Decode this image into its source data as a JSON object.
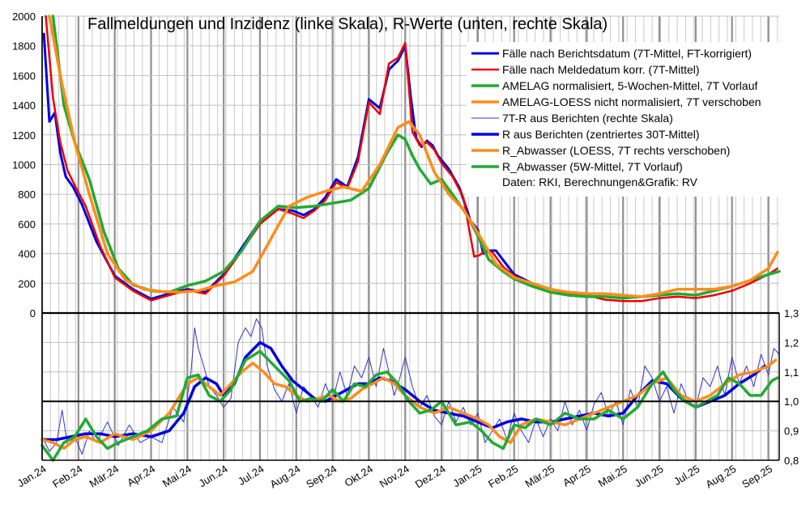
{
  "chart_data": {
    "type": "line",
    "title": "Fallmeldungen und Inzidenz (linke Skala), R-Werte (unten, rechte Skala)",
    "credit": "Daten: RKI, Berechnungen&Grafik: RV",
    "left_axis": {
      "ylim": [
        0,
        2000
      ],
      "ticks": [
        "0",
        "200",
        "400",
        "600",
        "800",
        "1000",
        "1200",
        "1400",
        "1600",
        "1800",
        "2000"
      ]
    },
    "right_axis": {
      "ylim": [
        0.8,
        1.3
      ],
      "ticks": [
        "0,8",
        "0,9",
        "1,0",
        "1,1",
        "1,2",
        "1,3"
      ]
    },
    "x_range": [
      0,
      20.3
    ],
    "months": [
      "Jan.24",
      "Feb.24",
      "Mär.24",
      "Apr.24",
      "Mai.24",
      "Jun.24",
      "Jul.24",
      "Aug.24",
      "Sep.24",
      "Okt.24",
      "Nov.24",
      "Dez.24",
      "Jan.25",
      "Feb.25",
      "Mär.25",
      "Apr.25",
      "Mai.25",
      "Jun.25",
      "Jul.25",
      "Aug.25",
      "Sep.25"
    ],
    "legend_position": "top-right",
    "reference_line_R": 1.0,
    "series": [
      {
        "name": "Fälle nach Berichtsdatum (7T-Mittel, FT-korrigiert)",
        "panel": "upper",
        "color": "#0000dd",
        "width": 3,
        "x": [
          0.05,
          0.2,
          0.35,
          0.5,
          0.65,
          0.85,
          1.1,
          1.5,
          2.0,
          2.5,
          3.0,
          3.5,
          4.0,
          4.5,
          5.0,
          5.5,
          6.0,
          6.5,
          6.9,
          7.2,
          7.5,
          7.8,
          8.1,
          8.4,
          8.7,
          9.0,
          9.3,
          9.55,
          9.8,
          10.0,
          10.15,
          10.3,
          10.45,
          10.6,
          10.75,
          10.9,
          11.2,
          11.5,
          11.8,
          12.0,
          12.15,
          12.3,
          12.5,
          13.0,
          13.5,
          14.0,
          14.5,
          15.0
        ],
        "values": [
          1880,
          1290,
          1350,
          1080,
          920,
          850,
          730,
          480,
          250,
          160,
          95,
          130,
          160,
          140,
          260,
          440,
          620,
          700,
          690,
          660,
          700,
          780,
          900,
          850,
          1050,
          1440,
          1380,
          1640,
          1700,
          1800,
          1460,
          1180,
          1120,
          1160,
          1130,
          1060,
          970,
          840,
          620,
          560,
          400,
          420,
          420,
          260,
          200,
          160,
          140,
          130
        ]
      },
      {
        "name": "Fälle nach Meldedatum korr. (7T-Mittel)",
        "panel": "upper",
        "color": "#ee0000",
        "width": 2.5,
        "x": [
          0.1,
          0.3,
          0.5,
          0.7,
          0.9,
          1.2,
          1.6,
          2.0,
          2.5,
          3.0,
          3.5,
          4.0,
          4.5,
          5.0,
          5.5,
          6.0,
          6.5,
          6.9,
          7.2,
          7.5,
          7.8,
          8.1,
          8.4,
          8.7,
          9.0,
          9.3,
          9.55,
          9.8,
          10.0,
          10.2,
          10.4,
          10.6,
          10.8,
          11.0,
          11.3,
          11.6,
          11.9,
          12.05,
          12.2,
          12.4,
          12.7,
          13.0,
          13.5,
          14.0,
          14.5,
          15.0,
          15.5,
          16.0,
          16.5,
          17.0,
          17.5,
          18.0,
          18.5,
          19.0,
          19.5,
          20.0,
          20.25
        ],
        "values": [
          2000,
          1450,
          1150,
          960,
          860,
          720,
          450,
          240,
          150,
          85,
          120,
          155,
          130,
          250,
          420,
          600,
          700,
          670,
          640,
          690,
          760,
          880,
          840,
          1020,
          1420,
          1340,
          1680,
          1720,
          1820,
          1220,
          1130,
          1150,
          1100,
          1010,
          920,
          780,
          380,
          390,
          420,
          410,
          310,
          250,
          190,
          160,
          130,
          120,
          90,
          80,
          80,
          100,
          110,
          100,
          120,
          150,
          200,
          260,
          300
        ]
      },
      {
        "name": "AMELAG normalisiert, 5-Wochen-Mittel, 7T Vorlauf",
        "panel": "upper",
        "color": "#22aa33",
        "width": 3.5,
        "x": [
          0.3,
          0.6,
          0.9,
          1.3,
          1.7,
          2.1,
          2.5,
          3.0,
          3.5,
          4.0,
          4.5,
          5.0,
          5.5,
          6.0,
          6.5,
          7.0,
          7.5,
          8.0,
          8.5,
          9.0,
          9.5,
          9.8,
          10.0,
          10.2,
          10.4,
          10.7,
          11.0,
          11.3,
          11.7,
          12.0,
          12.3,
          12.7,
          13.0,
          13.5,
          14.0,
          14.5,
          15.0,
          15.5,
          16.0,
          16.5,
          17.0,
          17.5,
          18.0,
          18.5,
          19.0,
          19.5,
          20.0,
          20.3
        ],
        "values": [
          2000,
          1400,
          1150,
          900,
          550,
          300,
          190,
          150,
          140,
          185,
          215,
          280,
          420,
          620,
          720,
          710,
          720,
          740,
          760,
          840,
          1080,
          1200,
          1170,
          1060,
          970,
          870,
          900,
          800,
          660,
          520,
          360,
          280,
          230,
          180,
          140,
          120,
          110,
          110,
          100,
          110,
          120,
          130,
          120,
          150,
          180,
          220,
          260,
          280
        ]
      },
      {
        "name": "AMELAG-LOESS nicht normalisiert, 7T verschoben",
        "panel": "upper",
        "color": "#ff8c1a",
        "width": 3.5,
        "x": [
          0.2,
          0.5,
          0.9,
          1.3,
          1.8,
          2.3,
          2.8,
          3.3,
          3.8,
          4.3,
          4.8,
          5.3,
          5.8,
          6.3,
          6.8,
          7.3,
          7.8,
          8.3,
          8.8,
          9.3,
          9.8,
          10.1,
          10.4,
          10.8,
          11.2,
          11.6,
          12.0,
          12.5,
          13.0,
          13.5,
          14.0,
          14.5,
          15.0,
          15.5,
          16.0,
          16.5,
          17.0,
          17.5,
          18.0,
          18.5,
          19.0,
          19.5,
          20.0,
          20.25
        ],
        "values": [
          2000,
          1600,
          1150,
          800,
          400,
          220,
          160,
          145,
          140,
          150,
          185,
          210,
          280,
          500,
          720,
          780,
          820,
          850,
          820,
          1000,
          1250,
          1290,
          1200,
          950,
          800,
          700,
          540,
          330,
          240,
          200,
          160,
          140,
          130,
          130,
          120,
          110,
          130,
          160,
          160,
          160,
          180,
          220,
          300,
          410
        ]
      },
      {
        "name": "7T-R aus Berichten (rechte Skala)",
        "panel": "lower",
        "color": "#3333cc",
        "width": 1,
        "x": [
          0.0,
          0.2,
          0.4,
          0.55,
          0.7,
          0.9,
          1.1,
          1.3,
          1.5,
          1.8,
          2.1,
          2.4,
          2.7,
          3.0,
          3.3,
          3.6,
          3.9,
          4.1,
          4.2,
          4.3,
          4.45,
          4.6,
          4.8,
          5.0,
          5.2,
          5.4,
          5.6,
          5.75,
          5.9,
          6.05,
          6.2,
          6.4,
          6.6,
          6.8,
          7.0,
          7.2,
          7.4,
          7.6,
          7.8,
          8.0,
          8.2,
          8.4,
          8.6,
          8.8,
          9.0,
          9.2,
          9.4,
          9.55,
          9.7,
          9.85,
          10.0,
          10.2,
          10.4,
          10.6,
          10.8,
          11.0,
          11.2,
          11.4,
          11.6,
          11.8,
          12.0,
          12.2,
          12.4,
          12.6,
          12.8,
          13.0,
          13.2,
          13.4,
          13.6,
          13.8,
          14.0,
          14.2,
          14.4,
          14.6,
          14.8,
          15.0,
          15.2,
          15.4,
          15.6,
          15.8,
          16.0,
          16.2,
          16.4,
          16.6,
          16.8,
          17.0,
          17.2,
          17.4,
          17.6,
          17.8,
          18.0,
          18.2,
          18.4,
          18.6,
          18.8,
          19.0,
          19.2,
          19.4,
          19.6,
          19.8,
          20.0,
          20.15,
          20.3
        ],
        "values": [
          0.88,
          0.83,
          0.86,
          0.97,
          0.85,
          0.88,
          0.82,
          0.9,
          0.86,
          0.93,
          0.85,
          0.92,
          0.86,
          0.88,
          0.86,
          0.98,
          0.93,
          1.1,
          1.25,
          1.18,
          1.12,
          1.05,
          1.02,
          0.98,
          1.01,
          1.2,
          1.25,
          1.22,
          1.28,
          1.25,
          1.12,
          1.04,
          1.0,
          1.06,
          0.96,
          1.05,
          1.02,
          0.98,
          1.06,
          1.0,
          1.1,
          1.02,
          1.12,
          1.08,
          1.15,
          1.05,
          1.18,
          1.1,
          1.02,
          1.08,
          1.15,
          1.05,
          0.98,
          1.02,
          0.95,
          0.92,
          1.0,
          0.93,
          0.98,
          0.92,
          0.96,
          0.86,
          0.9,
          0.94,
          0.87,
          0.96,
          0.9,
          0.86,
          0.94,
          0.88,
          0.94,
          0.9,
          1.0,
          0.92,
          0.97,
          0.9,
          0.99,
          1.03,
          0.95,
          1.0,
          0.92,
          1.04,
          0.98,
          1.12,
          1.08,
          1.0,
          1.05,
          0.96,
          1.06,
          1.0,
          0.98,
          1.08,
          1.05,
          1.12,
          1.02,
          1.15,
          1.06,
          1.12,
          1.05,
          1.16,
          1.09,
          1.18,
          1.16
        ]
      },
      {
        "name": "R aus Berichten (zentriertes 30T-Mittel)",
        "panel": "lower",
        "color": "#0000dd",
        "width": 3.5,
        "x": [
          0.0,
          0.4,
          0.8,
          1.2,
          1.6,
          2.0,
          2.5,
          3.0,
          3.5,
          3.9,
          4.2,
          4.5,
          4.8,
          5.0,
          5.3,
          5.6,
          6.0,
          6.3,
          6.6,
          6.9,
          7.2,
          7.5,
          7.8,
          8.1,
          8.4,
          8.7,
          9.0,
          9.3,
          9.6,
          10.0,
          10.4,
          10.8,
          11.2,
          11.6,
          12.0,
          12.4,
          12.8,
          13.2,
          13.6,
          14.0,
          14.4,
          14.8,
          15.2,
          15.6,
          16.0,
          16.4,
          16.8,
          17.2,
          17.6,
          18.0,
          18.4,
          18.8,
          19.2,
          19.6,
          19.9
        ],
        "values": [
          0.87,
          0.87,
          0.88,
          0.89,
          0.89,
          0.88,
          0.89,
          0.88,
          0.9,
          0.96,
          1.05,
          1.08,
          1.06,
          1.02,
          1.06,
          1.15,
          1.2,
          1.18,
          1.12,
          1.07,
          1.04,
          1.01,
          1.0,
          1.02,
          1.04,
          1.06,
          1.06,
          1.08,
          1.07,
          1.04,
          1.0,
          0.97,
          0.96,
          0.95,
          0.93,
          0.91,
          0.93,
          0.94,
          0.93,
          0.93,
          0.94,
          0.95,
          0.96,
          0.95,
          0.96,
          1.02,
          1.07,
          1.06,
          1.01,
          0.98,
          1.0,
          1.02,
          1.06,
          1.09,
          1.12
        ]
      },
      {
        "name": "R_Abwasser (LOESS, 7T rechts verschoben)",
        "panel": "lower",
        "color": "#ff8c1a",
        "width": 3.5,
        "x": [
          0.0,
          0.3,
          0.6,
          0.9,
          1.2,
          1.6,
          2.0,
          2.5,
          3.0,
          3.5,
          4.0,
          4.3,
          4.6,
          4.9,
          5.2,
          5.5,
          5.8,
          6.1,
          6.4,
          6.7,
          7.0,
          7.3,
          7.6,
          7.9,
          8.2,
          8.5,
          8.8,
          9.1,
          9.4,
          9.7,
          10.0,
          10.4,
          10.8,
          11.2,
          11.6,
          12.0,
          12.3,
          12.6,
          12.9,
          13.2,
          13.6,
          14.0,
          14.4,
          14.8,
          15.2,
          15.6,
          16.0,
          16.4,
          16.8,
          17.2,
          17.6,
          18.0,
          18.4,
          18.8,
          19.2,
          19.6,
          20.0,
          20.2
        ],
        "values": [
          0.87,
          0.86,
          0.84,
          0.87,
          0.88,
          0.86,
          0.89,
          0.87,
          0.9,
          0.96,
          1.06,
          1.08,
          1.05,
          1.02,
          1.06,
          1.1,
          1.13,
          1.1,
          1.06,
          1.05,
          1.02,
          1.0,
          1.01,
          1.02,
          1.0,
          1.01,
          1.04,
          1.06,
          1.08,
          1.06,
          1.02,
          0.98,
          0.96,
          0.98,
          0.96,
          0.94,
          0.92,
          0.88,
          0.86,
          0.92,
          0.94,
          0.93,
          0.92,
          0.94,
          0.96,
          0.98,
          1.0,
          1.02,
          1.06,
          1.08,
          1.02,
          1.0,
          1.02,
          1.06,
          1.09,
          1.1,
          1.12,
          1.14
        ]
      },
      {
        "name": "R_Abwasser (5W-Mittel, 7T Vorlauf)",
        "panel": "lower",
        "color": "#22aa33",
        "width": 3.5,
        "x": [
          0.0,
          0.3,
          0.6,
          0.9,
          1.2,
          1.5,
          1.8,
          2.1,
          2.5,
          2.9,
          3.3,
          3.7,
          4.0,
          4.3,
          4.6,
          4.9,
          5.2,
          5.6,
          6.0,
          6.4,
          6.8,
          7.1,
          7.4,
          7.7,
          8.0,
          8.3,
          8.6,
          8.9,
          9.2,
          9.5,
          9.8,
          10.1,
          10.4,
          10.7,
          11.0,
          11.4,
          11.8,
          12.1,
          12.4,
          12.7,
          13.0,
          13.3,
          13.6,
          14.0,
          14.4,
          14.8,
          15.2,
          15.6,
          16.0,
          16.4,
          16.8,
          17.1,
          17.4,
          17.7,
          18.0,
          18.3,
          18.6,
          18.9,
          19.2,
          19.5,
          19.8,
          20.1,
          20.25
        ],
        "values": [
          0.85,
          0.8,
          0.86,
          0.88,
          0.94,
          0.88,
          0.84,
          0.86,
          0.88,
          0.9,
          0.94,
          0.95,
          1.08,
          1.09,
          1.02,
          1.0,
          1.04,
          1.14,
          1.17,
          1.12,
          1.07,
          1.0,
          1.01,
          1.0,
          1.04,
          1.0,
          1.06,
          1.05,
          1.09,
          1.1,
          1.06,
          1.0,
          0.96,
          0.97,
          1.0,
          0.92,
          0.93,
          0.9,
          0.86,
          0.84,
          0.92,
          0.91,
          0.94,
          0.92,
          0.96,
          0.94,
          0.94,
          0.97,
          0.94,
          0.98,
          1.06,
          1.1,
          1.04,
          1.0,
          0.98,
          1.0,
          1.02,
          1.08,
          1.06,
          1.02,
          1.02,
          1.07,
          1.08
        ]
      }
    ]
  }
}
